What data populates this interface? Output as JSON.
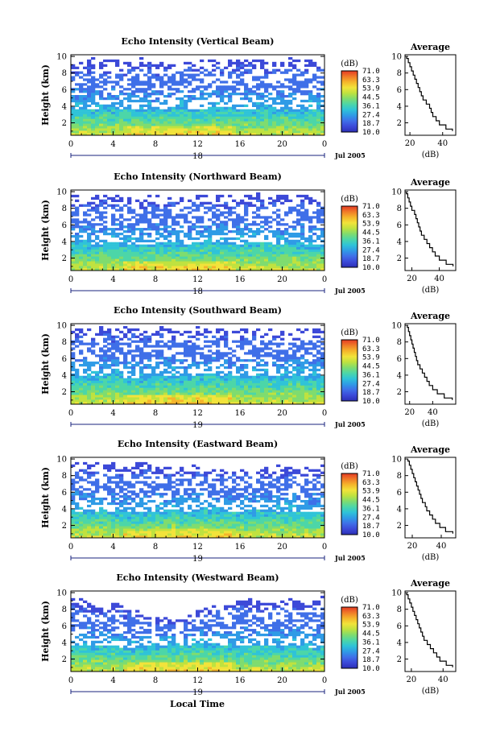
{
  "figure": {
    "xlabel": "Local Time",
    "date_label": "Jul 2005"
  },
  "colorbar": {
    "unit": "(dB)",
    "ticks": [
      "71.0",
      "63.3",
      "53.9",
      "44.5",
      "36.1",
      "27.4",
      "18.7",
      "10.0"
    ],
    "colors": [
      "#2b2fb5",
      "#3c49d8",
      "#3f6fe8",
      "#2f9be6",
      "#2fc3d8",
      "#4cd6a8",
      "#7fdc6f",
      "#bfe23f",
      "#f2e33a",
      "#f5b52b",
      "#f07a28",
      "#e43a24"
    ],
    "range": [
      10.0,
      71.0
    ]
  },
  "chart_data": [
    {
      "type": "heatmap",
      "title": "Echo Intensity (Vertical Beam)",
      "ylabel": "Height (km)",
      "xlim": [
        0,
        24
      ],
      "ylim": [
        0.5,
        10.2
      ],
      "xticks": [
        "0",
        "4",
        "8",
        "12",
        "16",
        "20",
        "0"
      ],
      "yticks": [
        "2",
        "4",
        "6",
        "8",
        "10"
      ],
      "date_tick": "18",
      "top_heights_km": [
        9.6,
        9.4,
        9.8,
        9.5,
        9.7,
        9.2,
        9.6,
        9.9,
        9.4,
        9.3,
        9.7,
        9.5,
        9.6,
        9.8,
        9.4,
        9.5,
        9.7,
        9.9,
        9.6,
        9.3,
        9.6,
        9.8,
        9.5,
        9.7,
        9.6
      ],
      "layer_heights_km": [
        3.7,
        3.8,
        3.6,
        3.9,
        3.7,
        3.8,
        3.6,
        3.4,
        3.6,
        3.8,
        3.9,
        3.7,
        3.6,
        3.8,
        4.0,
        3.9,
        3.7,
        3.6,
        3.8,
        3.9,
        3.7,
        3.6,
        3.8,
        3.7,
        3.6
      ],
      "average_profile": {
        "title": "Average",
        "xlabel": "(dB)",
        "xlim": [
          17,
          48
        ],
        "xticks": [
          "20",
          "40"
        ],
        "yticks": [
          "2",
          "4",
          "6",
          "8",
          "10"
        ],
        "height_km": [
          1.0,
          1.5,
          2.0,
          2.5,
          3.0,
          3.5,
          4.0,
          4.5,
          5.0,
          5.5,
          6.0,
          6.5,
          7.0,
          7.5,
          8.0,
          8.5,
          9.0,
          9.5,
          10.0
        ],
        "db": [
          46,
          42,
          38,
          36,
          34,
          33,
          32,
          30,
          28,
          27,
          26,
          25,
          24,
          23,
          22,
          21,
          20,
          19,
          18
        ]
      }
    },
    {
      "type": "heatmap",
      "title": "Echo Intensity (Northward Beam)",
      "ylabel": "Height (km)",
      "xlim": [
        0,
        24
      ],
      "ylim": [
        0.5,
        10.2
      ],
      "xticks": [
        "0",
        "4",
        "8",
        "12",
        "16",
        "20",
        "0"
      ],
      "yticks": [
        "2",
        "4",
        "6",
        "8",
        "10"
      ],
      "date_tick": "18",
      "top_heights_km": [
        9.5,
        9.7,
        9.4,
        9.8,
        9.6,
        9.5,
        9.3,
        9.6,
        9.7,
        9.4,
        9.5,
        9.6,
        9.8,
        9.7,
        9.5,
        9.6,
        9.4,
        9.7,
        9.8,
        9.5,
        9.6,
        9.4,
        9.7,
        9.5,
        9.6
      ],
      "layer_heights_km": [
        3.8,
        3.9,
        3.7,
        3.8,
        3.9,
        3.6,
        3.5,
        3.7,
        3.8,
        3.9,
        3.8,
        3.7,
        4.0,
        4.1,
        3.9,
        3.8,
        3.7,
        3.9,
        4.0,
        3.8,
        3.7,
        3.9,
        3.8,
        3.6,
        3.7
      ],
      "average_profile": {
        "title": "Average",
        "xlabel": "(dB)",
        "xlim": [
          15,
          52
        ],
        "xticks": [
          "20",
          "40"
        ],
        "yticks": [
          "2",
          "4",
          "6",
          "8",
          "10"
        ],
        "height_km": [
          1.0,
          1.5,
          2.0,
          2.5,
          3.0,
          3.5,
          4.0,
          4.5,
          5.0,
          5.5,
          6.0,
          6.5,
          7.0,
          7.5,
          8.0,
          8.5,
          9.0,
          9.5,
          10.0
        ],
        "db": [
          50,
          45,
          40,
          37,
          35,
          33,
          31,
          29,
          27,
          26,
          25,
          24,
          23,
          22,
          20,
          19,
          18,
          17,
          16
        ]
      }
    },
    {
      "type": "heatmap",
      "title": "Echo Intensity (Southward Beam)",
      "ylabel": "Height (km)",
      "xlim": [
        0,
        24
      ],
      "ylim": [
        0.5,
        10.2
      ],
      "xticks": [
        "0",
        "4",
        "8",
        "12",
        "16",
        "20",
        "0"
      ],
      "yticks": [
        "2",
        "4",
        "6",
        "8",
        "10"
      ],
      "date_tick": "19",
      "top_heights_km": [
        9.7,
        9.8,
        9.6,
        9.9,
        9.7,
        9.8,
        9.6,
        9.7,
        9.9,
        9.8,
        9.7,
        9.6,
        9.8,
        9.9,
        9.7,
        9.6,
        9.8,
        9.7,
        9.6,
        9.5,
        9.4,
        9.6,
        9.5,
        9.7,
        9.6
      ],
      "layer_heights_km": [
        3.9,
        4.0,
        3.8,
        3.9,
        4.1,
        3.7,
        3.6,
        3.8,
        3.9,
        4.0,
        3.9,
        3.8,
        4.1,
        4.2,
        4.0,
        3.9,
        3.8,
        4.0,
        4.1,
        3.9,
        3.8,
        4.0,
        3.9,
        3.7,
        3.8
      ],
      "average_profile": {
        "title": "Average",
        "xlabel": "(dB)",
        "xlim": [
          16,
          60
        ],
        "xticks": [
          "20",
          "40"
        ],
        "yticks": [
          "2",
          "4",
          "6",
          "8",
          "10"
        ],
        "height_km": [
          1.0,
          1.5,
          2.0,
          2.5,
          3.0,
          3.5,
          4.0,
          4.5,
          5.0,
          5.5,
          6.0,
          6.5,
          7.0,
          7.5,
          8.0,
          8.5,
          9.0,
          9.5,
          10.0
        ],
        "db": [
          57,
          50,
          44,
          40,
          37,
          35,
          33,
          31,
          29,
          27,
          26,
          25,
          24,
          23,
          22,
          21,
          20,
          19,
          18
        ]
      }
    },
    {
      "type": "heatmap",
      "title": "Echo Intensity (Eastward Beam)",
      "ylabel": "Height (km)",
      "xlim": [
        0,
        24
      ],
      "ylim": [
        0.5,
        10.2
      ],
      "xticks": [
        "0",
        "4",
        "8",
        "12",
        "16",
        "20",
        "0"
      ],
      "yticks": [
        "2",
        "4",
        "6",
        "8",
        "10"
      ],
      "date_tick": "19",
      "top_heights_km": [
        9.6,
        9.5,
        9.7,
        9.4,
        9.6,
        9.3,
        9.5,
        9.6,
        9.2,
        9.0,
        8.8,
        9.1,
        9.3,
        8.9,
        8.7,
        9.0,
        8.8,
        8.6,
        8.9,
        9.1,
        9.3,
        9.0,
        8.8,
        9.2,
        9.4
      ],
      "layer_heights_km": [
        3.6,
        3.8,
        3.7,
        3.9,
        3.6,
        3.5,
        3.4,
        3.6,
        3.7,
        3.8,
        3.9,
        3.7,
        3.9,
        4.0,
        3.8,
        3.7,
        3.6,
        3.8,
        3.9,
        3.7,
        3.6,
        3.8,
        3.7,
        3.5,
        3.6
      ],
      "average_profile": {
        "title": "Average",
        "xlabel": "(dB)",
        "xlim": [
          15,
          50
        ],
        "xticks": [
          "20",
          "40"
        ],
        "yticks": [
          "2",
          "4",
          "6",
          "8",
          "10"
        ],
        "height_km": [
          1.0,
          1.5,
          2.0,
          2.5,
          3.0,
          3.5,
          4.0,
          4.5,
          5.0,
          5.5,
          6.0,
          6.5,
          7.0,
          7.5,
          8.0,
          8.5,
          9.0,
          9.5,
          10.0
        ],
        "db": [
          48,
          43,
          39,
          36,
          34,
          32,
          30,
          29,
          27,
          26,
          25,
          24,
          23,
          22,
          21,
          20,
          19,
          18,
          17
        ]
      }
    },
    {
      "type": "heatmap",
      "title": "Echo Intensity (Westward Beam)",
      "ylabel": "Height (km)",
      "xlim": [
        0,
        24
      ],
      "ylim": [
        0.5,
        10.2
      ],
      "xticks": [
        "0",
        "4",
        "8",
        "12",
        "16",
        "20",
        "0"
      ],
      "yticks": [
        "2",
        "4",
        "6",
        "8",
        "10"
      ],
      "date_tick": "19",
      "top_heights_km": [
        9.4,
        9.2,
        8.8,
        8.5,
        8.9,
        8.3,
        7.9,
        7.5,
        7.2,
        7.0,
        6.8,
        7.4,
        7.9,
        8.3,
        8.6,
        8.9,
        9.1,
        9.3,
        9.0,
        8.8,
        9.2,
        9.4,
        9.1,
        9.3,
        9.5
      ],
      "layer_heights_km": [
        3.6,
        3.7,
        3.5,
        3.8,
        3.6,
        3.4,
        3.3,
        3.5,
        3.6,
        3.7,
        3.8,
        3.6,
        3.9,
        3.9,
        3.7,
        3.6,
        3.5,
        3.7,
        3.8,
        3.6,
        3.5,
        3.7,
        3.6,
        3.4,
        3.5
      ],
      "average_profile": {
        "title": "Average",
        "xlabel": "(dB)",
        "xlim": [
          16,
          48
        ],
        "xticks": [
          "20",
          "40"
        ],
        "yticks": [
          "2",
          "4",
          "6",
          "8",
          "10"
        ],
        "height_km": [
          1.0,
          1.5,
          2.0,
          2.5,
          3.0,
          3.5,
          4.0,
          4.5,
          5.0,
          5.5,
          6.0,
          6.5,
          7.0,
          7.5,
          8.0,
          8.5,
          9.0,
          9.5,
          10.0
        ],
        "db": [
          46,
          42,
          38,
          36,
          34,
          32,
          30,
          28,
          27,
          26,
          25,
          24,
          23,
          22,
          21,
          20,
          19,
          18,
          17
        ]
      }
    }
  ]
}
